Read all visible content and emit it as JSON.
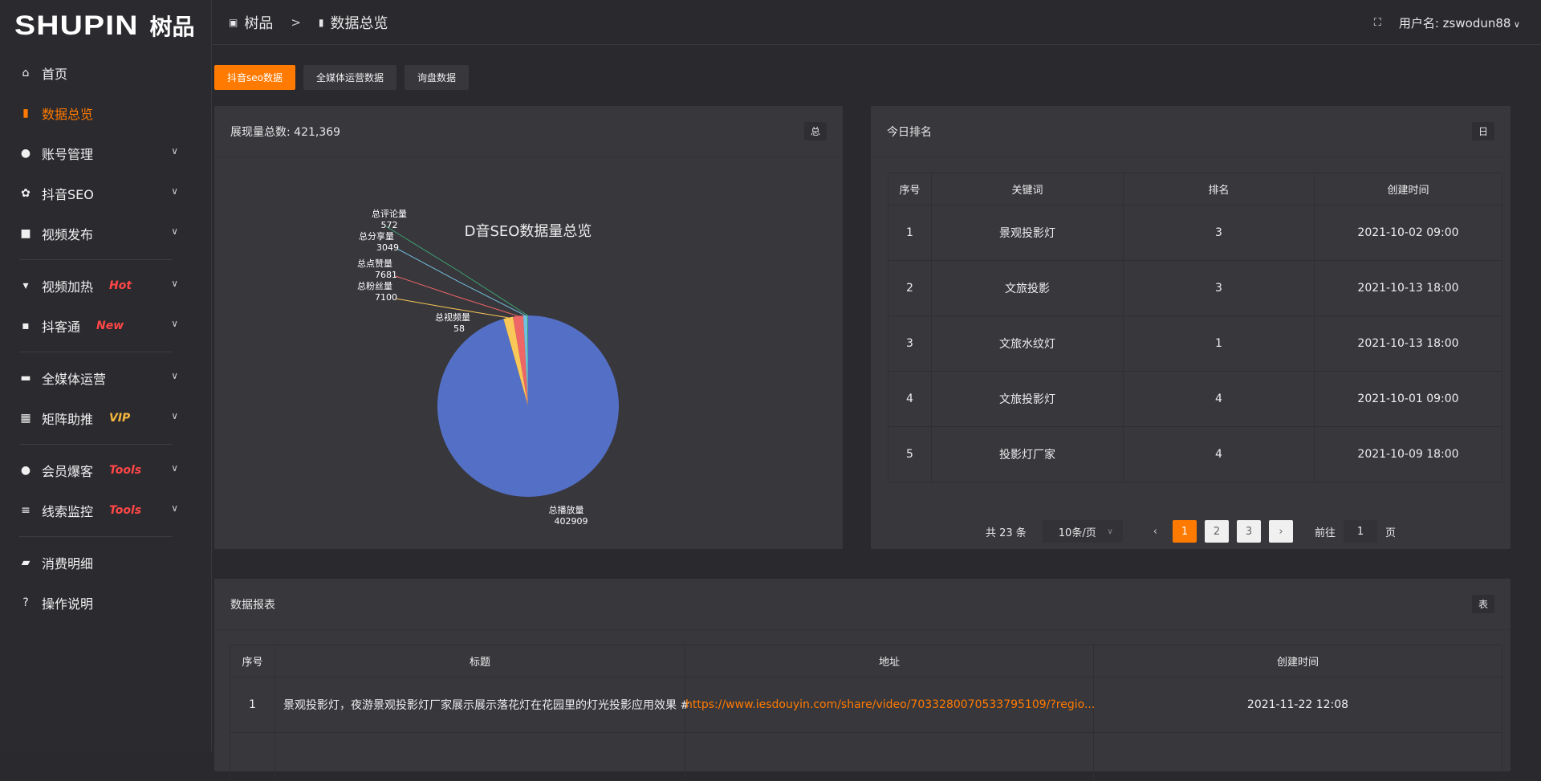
{
  "brand": {
    "logo_en": "SHUPIN",
    "logo_cn": "树品"
  },
  "sidebar": {
    "items": [
      {
        "label": "首页",
        "icon": "home-icon"
      },
      {
        "label": "数据总览",
        "icon": "bar-chart-icon",
        "active": true
      },
      {
        "label": "账号管理",
        "icon": "user-icon",
        "expandable": true
      },
      {
        "label": "抖音SEO",
        "icon": "gear-icon",
        "expandable": true
      },
      {
        "label": "视频发布",
        "icon": "camera-icon",
        "expandable": true
      },
      {
        "label": "视频加热",
        "icon": "sign-icon",
        "expandable": true,
        "badge": "Hot"
      },
      {
        "label": "抖客通",
        "icon": "chat-icon",
        "expandable": true,
        "badge": "New"
      },
      {
        "label": "全媒体运营",
        "icon": "monitor-icon",
        "expandable": true
      },
      {
        "label": "矩阵助推",
        "icon": "grid-icon",
        "expandable": true,
        "badge": "VIP"
      },
      {
        "label": "会员爆客",
        "icon": "user-icon",
        "expandable": true,
        "badge": "Tools"
      },
      {
        "label": "线索监控",
        "icon": "sliders-icon",
        "expandable": true,
        "badge": "Tools"
      },
      {
        "label": "消费明细",
        "icon": "wallet-icon"
      },
      {
        "label": "操作说明",
        "icon": "help-icon"
      }
    ]
  },
  "colors": {
    "accent": "#ff7a00",
    "hot": "#ff4747",
    "vip": "#f5b83d"
  },
  "header": {
    "breadcrumb": [
      "树品",
      "数据总览"
    ],
    "breadcrumb_sep": ">",
    "user_label": "用户名: zswodun88"
  },
  "tabs": [
    {
      "label": "抖音seo数据",
      "active": true
    },
    {
      "label": "全媒体运营数据"
    },
    {
      "label": "询盘数据"
    }
  ],
  "overview": {
    "title": "展现量总数: 421,369",
    "tag": "总"
  },
  "chart_data": {
    "type": "pie",
    "title": "D音SEO数据量总览",
    "categories": [
      "总播放量",
      "总视频量",
      "总粉丝量",
      "总点赞量",
      "总分享量",
      "总评论量"
    ],
    "values": [
      402909,
      58,
      7100,
      7681,
      3049,
      572
    ],
    "colors": [
      "#5470c6",
      "#91cc75",
      "#fac858",
      "#ee6666",
      "#73c0de",
      "#3ba272"
    ],
    "legend": "bottom"
  },
  "ranking": {
    "title": "今日排名",
    "tag": "日",
    "columns": [
      "序号",
      "关键词",
      "排名",
      "创建时间"
    ],
    "rows": [
      [
        "1",
        "景观投影灯",
        "3",
        "2021-10-02 09:00"
      ],
      [
        "2",
        "文旅投影",
        "3",
        "2021-10-13 18:00"
      ],
      [
        "3",
        "文旅水纹灯",
        "1",
        "2021-10-13 18:00"
      ],
      [
        "4",
        "文旅投影灯",
        "4",
        "2021-10-01 09:00"
      ],
      [
        "5",
        "投影灯厂家",
        "4",
        "2021-10-09 18:00"
      ]
    ],
    "pagination": {
      "total": "共 23 条",
      "page_size": "10条/页",
      "pages": [
        "1",
        "2",
        "3"
      ],
      "current": "1",
      "goto_label": "前往",
      "goto_value": "1",
      "page_suffix": "页"
    }
  },
  "report": {
    "title": "数据报表",
    "tag": "表",
    "columns": [
      "序号",
      "标题",
      "地址",
      "创建时间"
    ],
    "rows": [
      [
        "1",
        "景观投影灯，夜游景观投影灯厂家展示展示落花灯在花园里的灯光投影应用效果 #",
        "https://www.iesdouyin.com/share/video/7033280070533795109/?regio...",
        "2021-11-22 12:08"
      ]
    ]
  }
}
